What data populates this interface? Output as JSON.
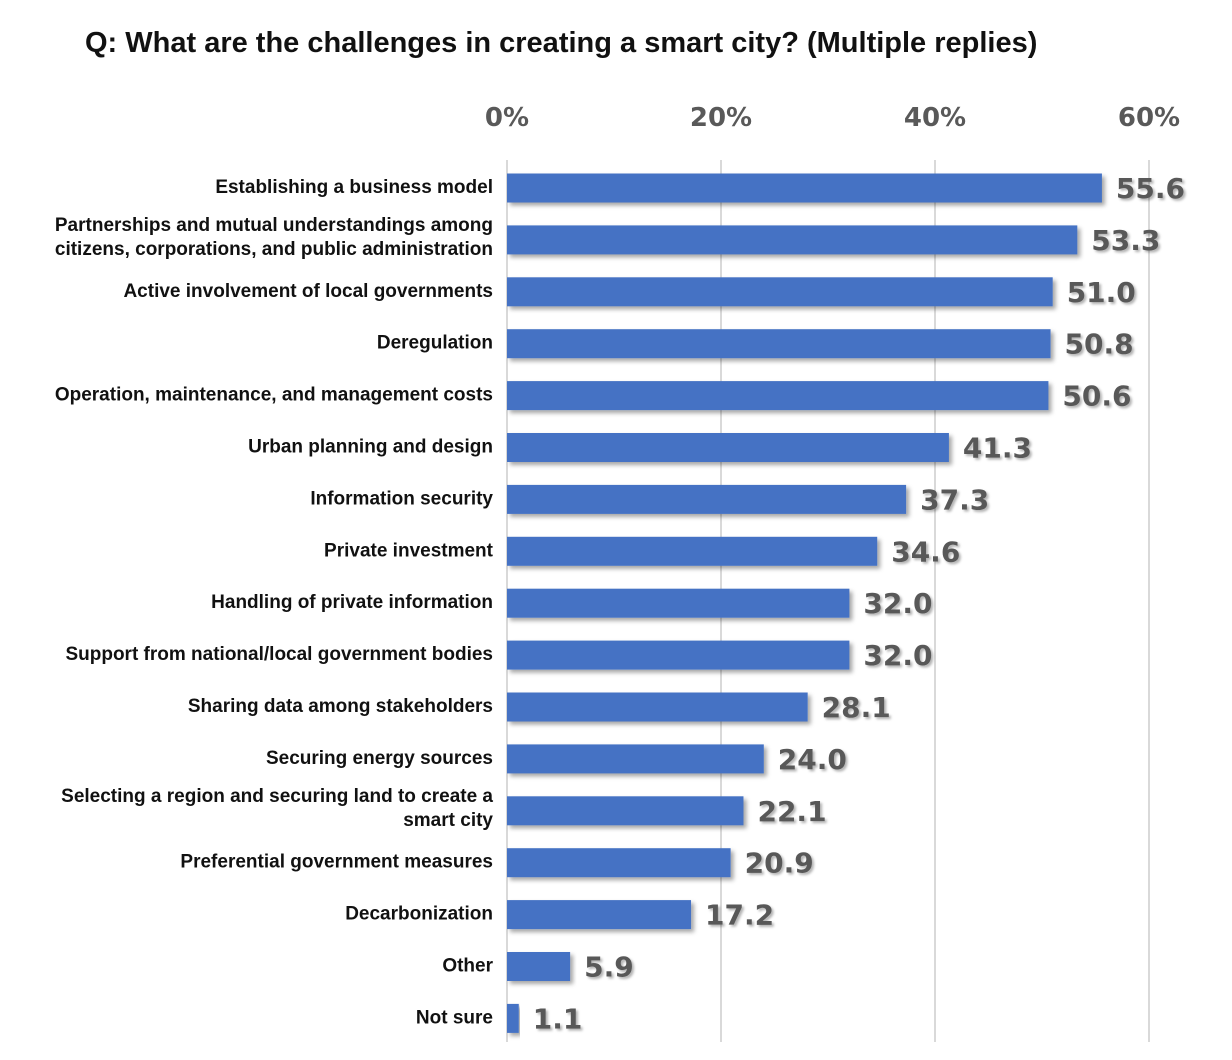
{
  "chart_data": {
    "type": "bar",
    "orientation": "horizontal",
    "title": "Q: What are the challenges in creating a smart city? (Multiple replies)",
    "xlabel": "",
    "ylabel": "",
    "xlim": [
      0,
      60
    ],
    "ticks": [
      0,
      20,
      40,
      60
    ],
    "tick_labels": [
      "0%",
      "20%",
      "40%",
      "60%"
    ],
    "axis_position": "top",
    "grid": true,
    "legend": "none",
    "bar_color": "#4472C4",
    "categories": [
      [
        "Establishing a business model"
      ],
      [
        "Partnerships and mutual understandings among",
        "citizens, corporations, and public administration"
      ],
      [
        "Active involvement of local governments"
      ],
      [
        "Deregulation"
      ],
      [
        "Operation, maintenance, and management costs"
      ],
      [
        "Urban planning and design"
      ],
      [
        "Information security"
      ],
      [
        "Private investment"
      ],
      [
        "Handling of private information"
      ],
      [
        "Support from national/local government bodies"
      ],
      [
        "Sharing data among stakeholders"
      ],
      [
        "Securing energy sources"
      ],
      [
        "Selecting a region and securing land to create a",
        "smart city"
      ],
      [
        "Preferential government measures"
      ],
      [
        "Decarbonization"
      ],
      [
        "Other"
      ],
      [
        "Not sure"
      ]
    ],
    "values": [
      55.6,
      53.3,
      51.0,
      50.8,
      50.6,
      41.3,
      37.3,
      34.6,
      32.0,
      32.0,
      28.1,
      24.0,
      22.1,
      20.9,
      17.2,
      5.9,
      1.1
    ],
    "value_labels": [
      "55.6",
      "53.3",
      "51.0",
      "50.8",
      "50.6",
      "41.3",
      "37.3",
      "34.6",
      "32.0",
      "32.0",
      "28.1",
      "24.0",
      "22.1",
      "20.9",
      "17.2",
      "5.9",
      "1.1"
    ]
  }
}
